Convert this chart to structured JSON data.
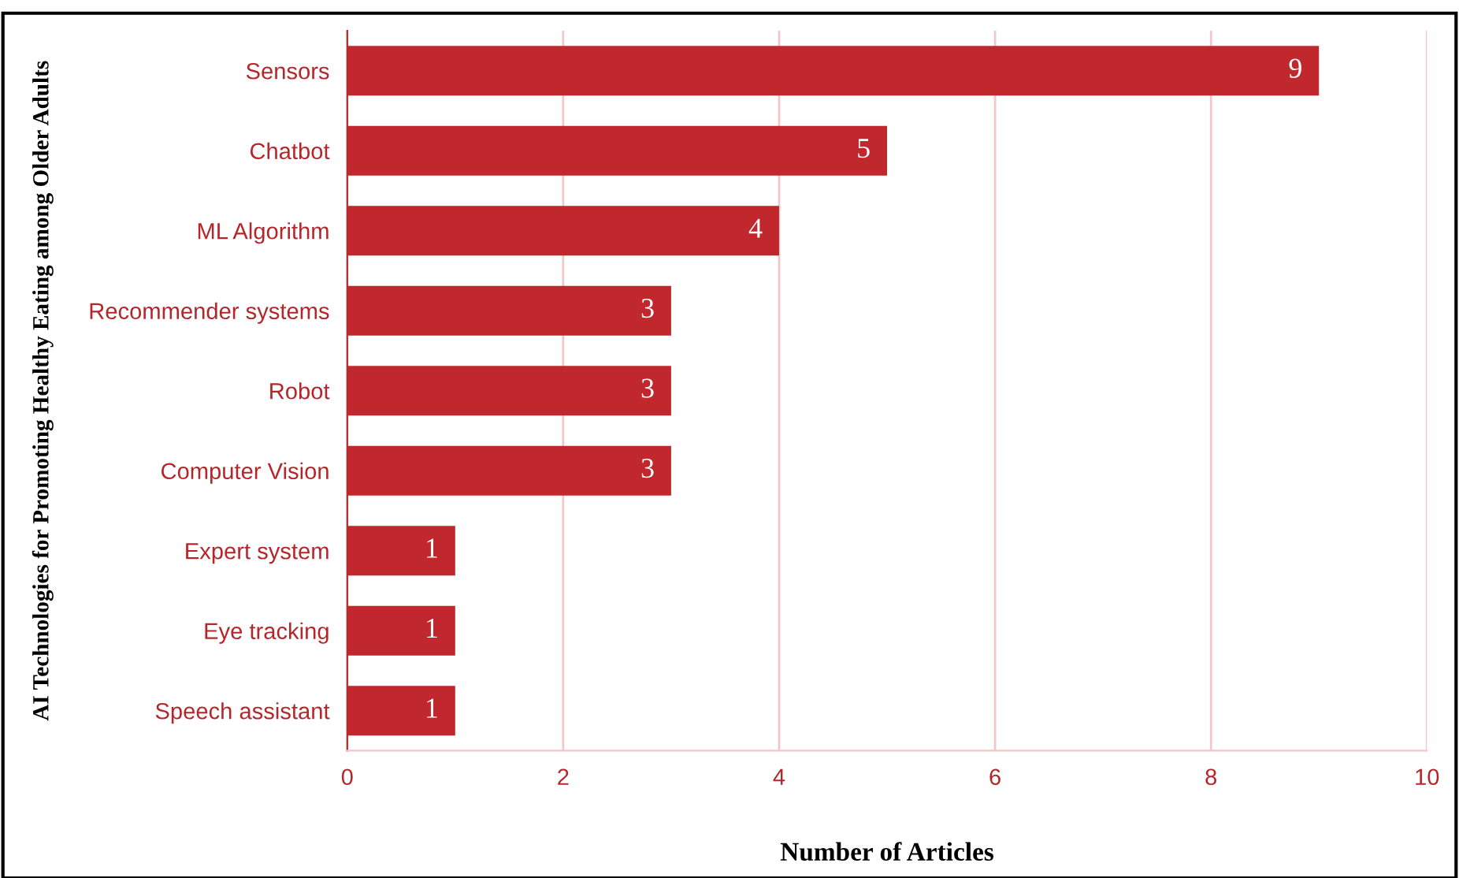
{
  "chart_data": {
    "type": "bar",
    "orientation": "horizontal",
    "xlabel": "Number of Articles",
    "ylabel": "AI Technologies for Promoting Healthy Eating among Older Adults",
    "categories": [
      "Sensors",
      "Chatbot",
      "ML Algorithm",
      "Recommender systems",
      "Robot",
      "Computer Vision",
      "Expert system",
      "Eye tracking",
      "Speech assistant"
    ],
    "values": [
      9,
      5,
      4,
      3,
      3,
      3,
      1,
      1,
      1
    ],
    "color": "#c0282d",
    "xlim": [
      0,
      10
    ],
    "xticks": [
      0,
      2,
      4,
      6,
      8,
      10
    ],
    "grid": "x",
    "data_labels": true
  }
}
